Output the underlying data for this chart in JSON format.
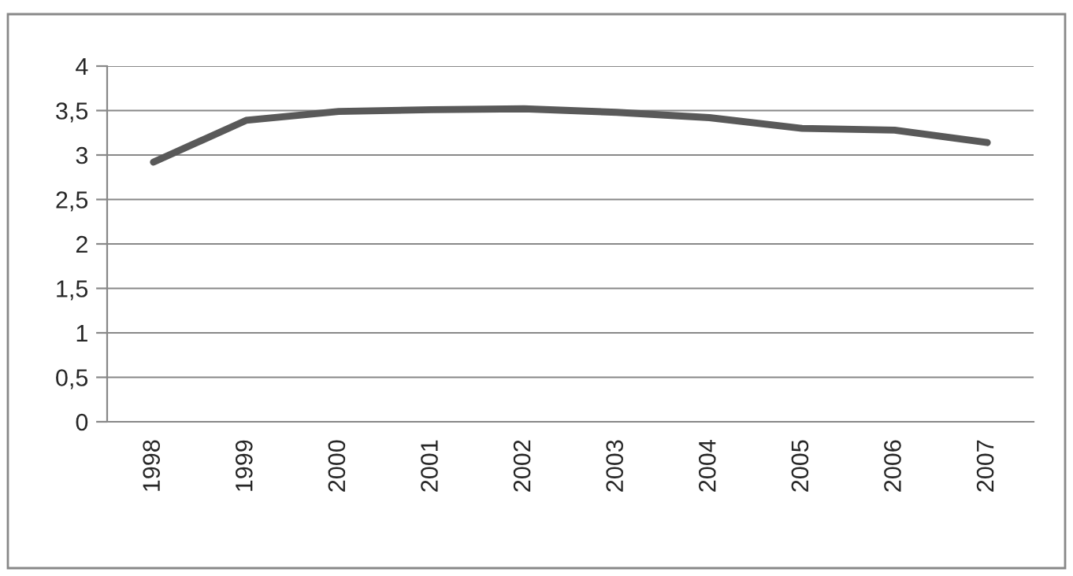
{
  "chart_data": {
    "type": "line",
    "categories": [
      "1998",
      "1999",
      "2000",
      "2001",
      "2002",
      "2003",
      "2004",
      "2005",
      "2006",
      "2007"
    ],
    "series": [
      {
        "color": "#595959",
        "values": [
          2.92,
          3.39,
          3.49,
          3.51,
          3.52,
          3.48,
          3.42,
          3.3,
          3.28,
          3.14
        ]
      }
    ],
    "ylim": [
      0,
      4
    ],
    "yticks": [
      {
        "value": 0,
        "label": "0"
      },
      {
        "value": 0.5,
        "label": "0,5"
      },
      {
        "value": 1,
        "label": "1"
      },
      {
        "value": 1.5,
        "label": "1,5"
      },
      {
        "value": 2,
        "label": "2"
      },
      {
        "value": 2.5,
        "label": "2,5"
      },
      {
        "value": 3,
        "label": "3"
      },
      {
        "value": 3.5,
        "label": "3,5"
      },
      {
        "value": 4,
        "label": "4"
      }
    ],
    "grid": "y",
    "legend": false,
    "marker": "none",
    "line_style": "solid"
  }
}
